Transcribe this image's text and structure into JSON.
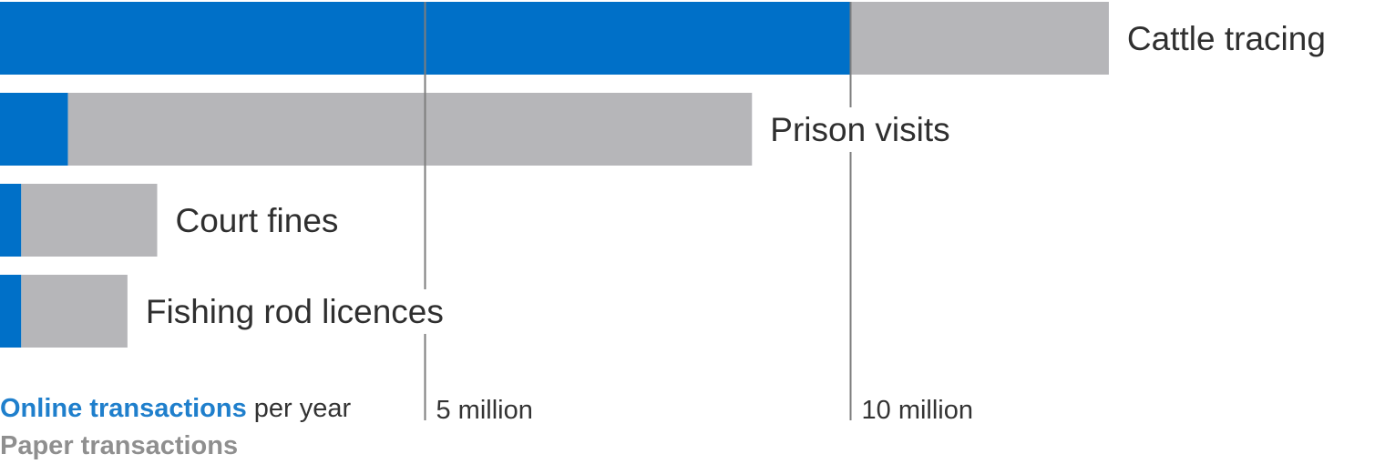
{
  "chart_data": {
    "type": "bar",
    "orientation": "horizontal",
    "stacked": true,
    "categories": [
      "Cattle tracing",
      "Prison visits",
      "Court fines",
      "Fishing rod licences"
    ],
    "series": [
      {
        "name": "Online transactions",
        "values": [
          10.0,
          0.8,
          0.25,
          0.25
        ],
        "color": "#0070c8"
      },
      {
        "name": "Paper transactions",
        "values": [
          3.05,
          8.05,
          1.6,
          1.25
        ],
        "color": "#b6b6b9"
      }
    ],
    "xlim": [
      0,
      16.3
    ],
    "xticks": [
      {
        "value": 5,
        "label": "5 million"
      },
      {
        "value": 10,
        "label": "10 million"
      }
    ],
    "legend": {
      "online_label": "Online transactions",
      "suffix": "per year",
      "paper_label": "Paper transactions"
    },
    "gridline_color": "#7d7d7d",
    "grid": "vertical lines at ticks"
  }
}
